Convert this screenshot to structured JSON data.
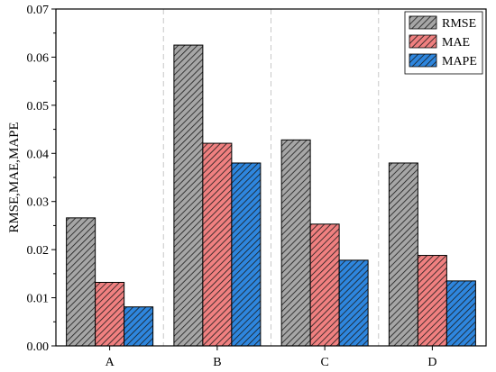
{
  "chart_data": {
    "type": "bar",
    "categories": [
      "A",
      "B",
      "C",
      "D"
    ],
    "series": [
      {
        "name": "RMSE",
        "values": [
          0.0266,
          0.0625,
          0.0428,
          0.038
        ],
        "color": "#a6a6a6"
      },
      {
        "name": "MAE",
        "values": [
          0.0132,
          0.0421,
          0.0253,
          0.0188
        ],
        "color": "#f08080"
      },
      {
        "name": "MAPE",
        "values": [
          0.0081,
          0.038,
          0.0178,
          0.0135
        ],
        "color": "#2e86de"
      }
    ],
    "xlabel": "",
    "ylabel": "RMSE,MAE,MAPE",
    "ylim": [
      0,
      0.07
    ],
    "yticks": [
      "0.00",
      "0.01",
      "0.02",
      "0.03",
      "0.04",
      "0.05",
      "0.06",
      "0.07"
    ],
    "ytick_values": [
      0,
      0.01,
      0.02,
      0.03,
      0.04,
      0.05,
      0.06,
      0.07
    ],
    "bar_pattern": "diagonal-hatch",
    "category_separators": "dashed",
    "grid": false,
    "legend_position": "top-right"
  }
}
